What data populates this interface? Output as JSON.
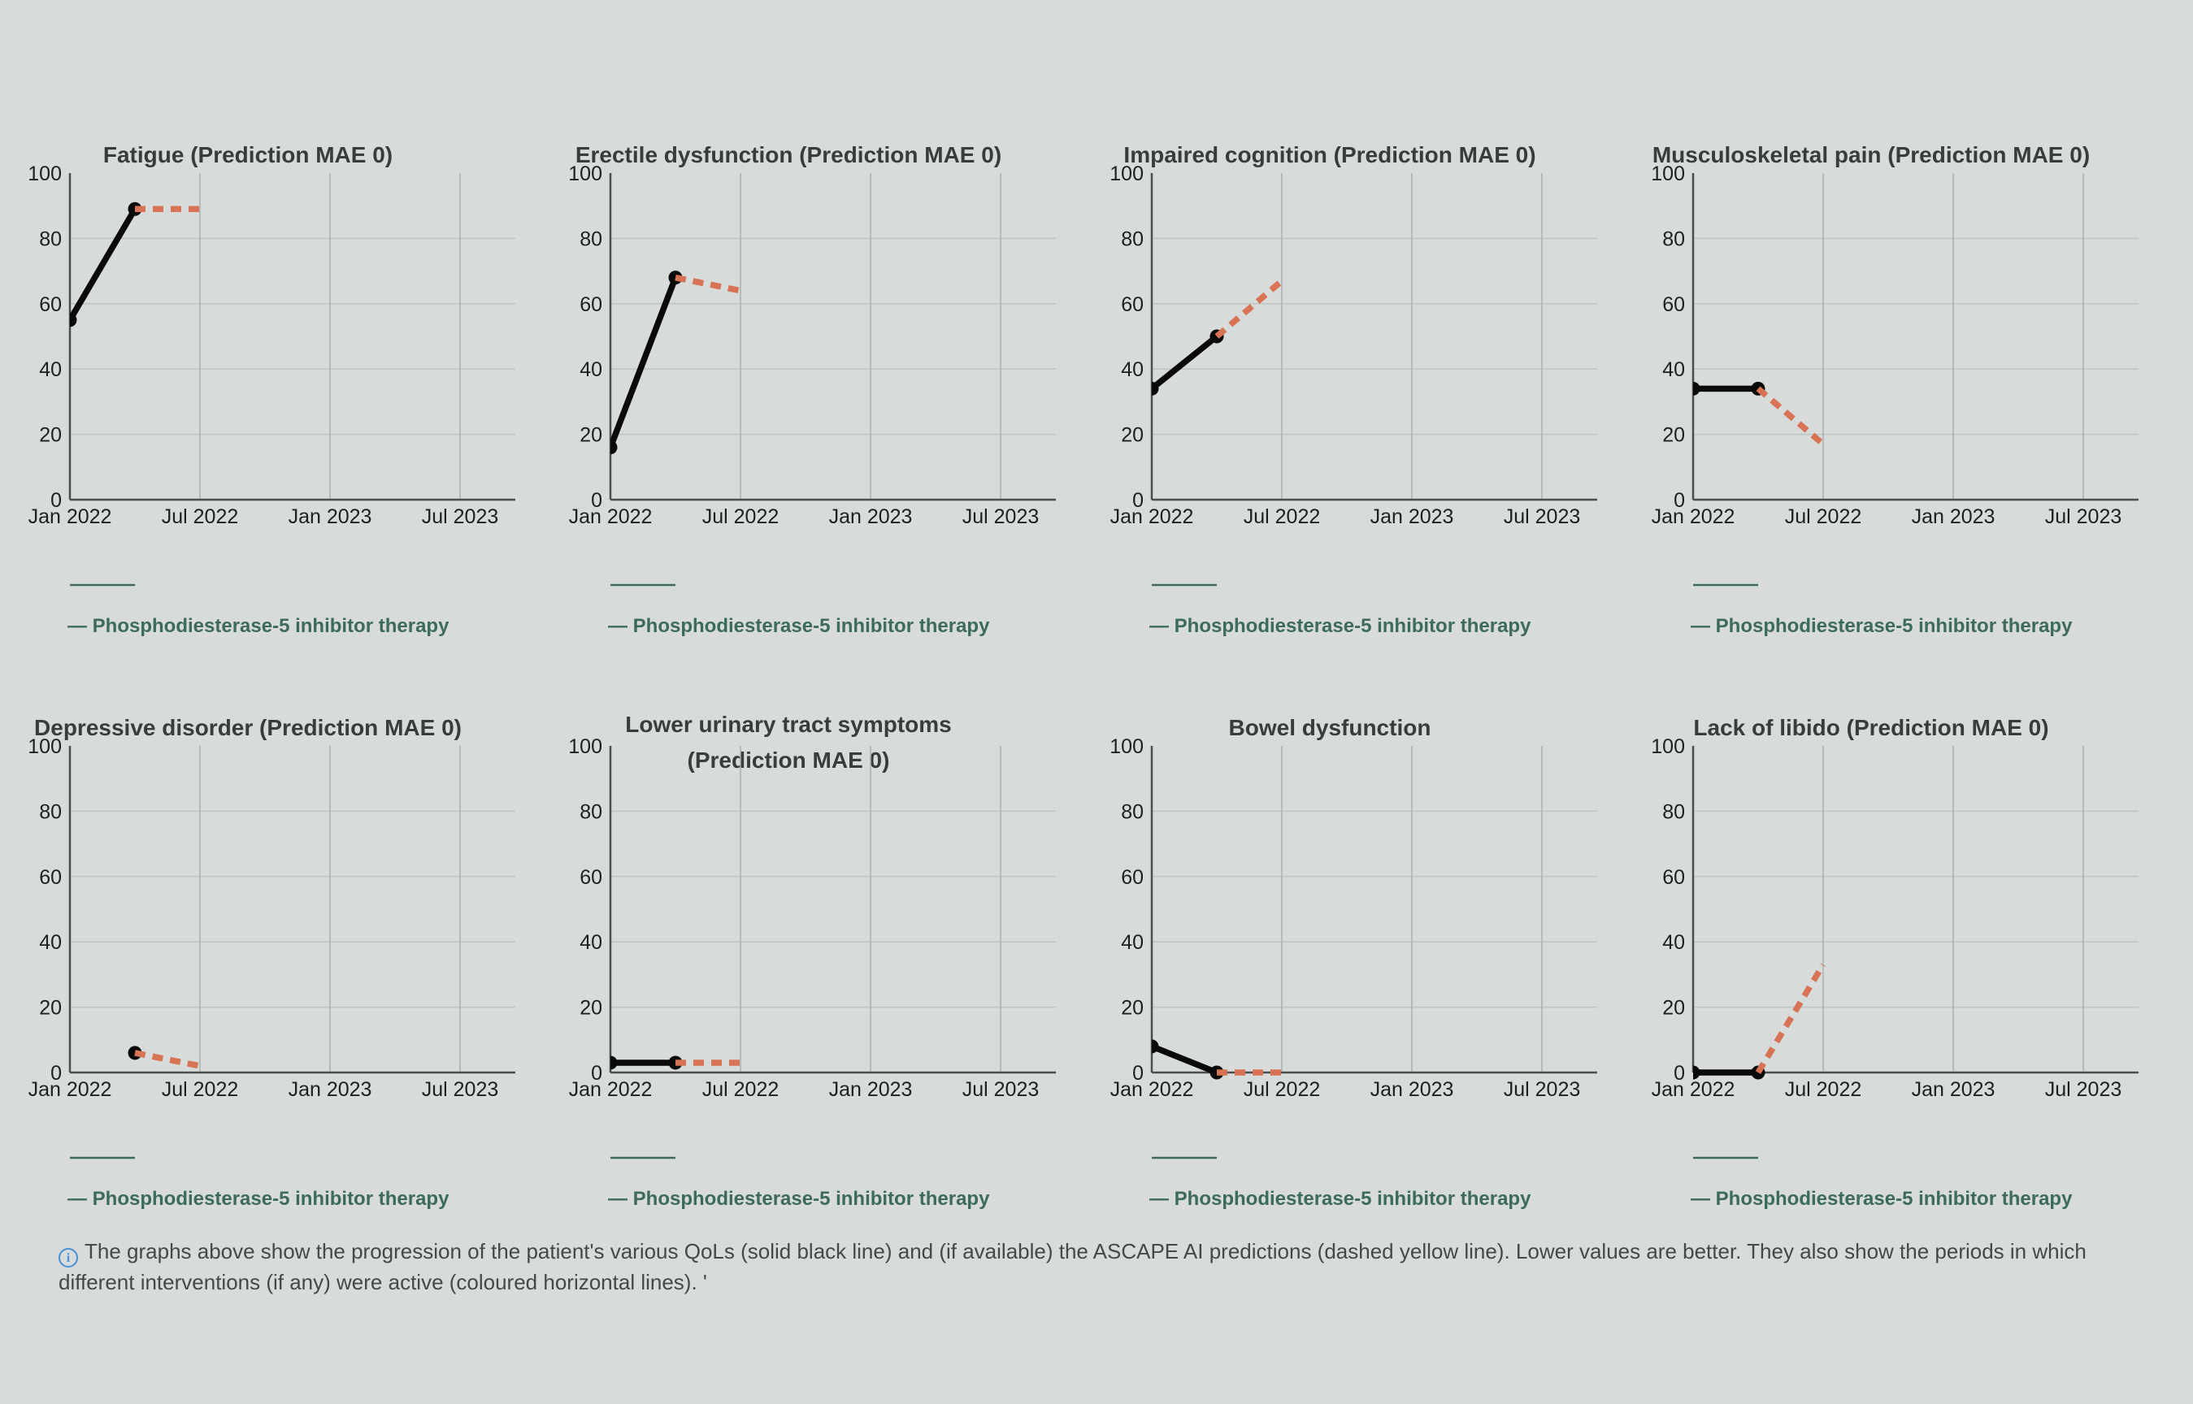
{
  "page": {
    "background": "#d7dcda"
  },
  "colors": {
    "title": "#383d3b",
    "tick_label": "#1d201f",
    "axis": "#4b4e4d",
    "grid_horizontal": "#bdc4c2",
    "grid_vertical": "#a9b0ae",
    "actual_line": "#0a0a0a",
    "prediction_line": "#d87355",
    "intervention_line": "#3e6a5d",
    "legend_text": "#3e6a5d",
    "note_text": "#424946",
    "info_icon": "#4a90d8"
  },
  "axis": {
    "x_ticks": [
      "Jan 2022",
      "Jul 2022",
      "Jan 2023",
      "Jul 2023"
    ],
    "y_ticks": [
      "0",
      "20",
      "40",
      "60",
      "80",
      "100"
    ],
    "ylim": [
      0,
      100
    ],
    "grid": true
  },
  "legend": {
    "label": "— Phosphodiesterase-5 inhibitor therapy"
  },
  "note": {
    "icon": "info-icon",
    "icon_glyph": "i",
    "text": "The graphs above show the progression of the patient's various QoLs (solid black line) and (if available) the ASCAPE AI predictions (dashed yellow line). Lower values are better. They also show the periods in which different interventions (if any) were active (coloured horizontal lines). '"
  },
  "chart_data": [
    {
      "type": "line",
      "title": "Fatigue (Prediction MAE 0)",
      "title_lines": [
        "Fatigue (Prediction MAE 0)"
      ],
      "xlabel": "",
      "ylabel": "",
      "actual": {
        "x": [
          "Jan 2022",
          "Apr 2022"
        ],
        "y": [
          55,
          89
        ]
      },
      "prediction": {
        "x": [
          "Apr 2022",
          "Jul 2022"
        ],
        "y": [
          89,
          89
        ]
      },
      "intervention": {
        "label": "Phosphodiesterase-5 inhibitor therapy",
        "x": [
          "Jan 2022",
          "Apr 2022"
        ]
      }
    },
    {
      "type": "line",
      "title": "Erectile dysfunction (Prediction MAE 0)",
      "title_lines": [
        "Erectile dysfunction (Prediction MAE 0)"
      ],
      "xlabel": "",
      "ylabel": "",
      "actual": {
        "x": [
          "Jan 2022",
          "Apr 2022"
        ],
        "y": [
          16,
          68
        ]
      },
      "prediction": {
        "x": [
          "Apr 2022",
          "Jul 2022"
        ],
        "y": [
          68,
          64
        ]
      },
      "intervention": {
        "label": "Phosphodiesterase-5 inhibitor therapy",
        "x": [
          "Jan 2022",
          "Apr 2022"
        ]
      }
    },
    {
      "type": "line",
      "title": "Impaired cognition (Prediction MAE 0)",
      "title_lines": [
        "Impaired cognition (Prediction MAE 0)"
      ],
      "xlabel": "",
      "ylabel": "",
      "actual": {
        "x": [
          "Jan 2022",
          "Apr 2022"
        ],
        "y": [
          34,
          50
        ]
      },
      "prediction": {
        "x": [
          "Apr 2022",
          "Jul 2022"
        ],
        "y": [
          50,
          67
        ]
      },
      "intervention": {
        "label": "Phosphodiesterase-5 inhibitor therapy",
        "x": [
          "Jan 2022",
          "Apr 2022"
        ]
      }
    },
    {
      "type": "line",
      "title": "Musculoskeletal pain (Prediction MAE 0)",
      "title_lines": [
        "Musculoskeletal pain (Prediction MAE 0)"
      ],
      "xlabel": "",
      "ylabel": "",
      "actual": {
        "x": [
          "Jan 2022",
          "Apr 2022"
        ],
        "y": [
          34,
          34
        ]
      },
      "prediction": {
        "x": [
          "Apr 2022",
          "Jul 2022"
        ],
        "y": [
          34,
          17
        ]
      },
      "intervention": {
        "label": "Phosphodiesterase-5 inhibitor therapy",
        "x": [
          "Jan 2022",
          "Apr 2022"
        ]
      }
    },
    {
      "type": "line",
      "title": "Depressive disorder (Prediction MAE 0)",
      "title_lines": [
        "Depressive disorder (Prediction MAE 0)"
      ],
      "xlabel": "",
      "ylabel": "",
      "actual": {
        "x": [
          "Apr 2022"
        ],
        "y": [
          6
        ]
      },
      "prediction": {
        "x": [
          "Apr 2022",
          "Jul 2022"
        ],
        "y": [
          6,
          2
        ]
      },
      "intervention": {
        "label": "Phosphodiesterase-5 inhibitor therapy",
        "x": [
          "Jan 2022",
          "Apr 2022"
        ]
      }
    },
    {
      "type": "line",
      "title": "Lower urinary tract symptoms (Prediction MAE 0)",
      "title_lines": [
        "Lower urinary tract symptoms",
        "(Prediction MAE 0)"
      ],
      "xlabel": "",
      "ylabel": "",
      "actual": {
        "x": [
          "Jan 2022",
          "Apr 2022"
        ],
        "y": [
          3,
          3
        ]
      },
      "prediction": {
        "x": [
          "Apr 2022",
          "Jul 2022"
        ],
        "y": [
          3,
          3
        ]
      },
      "intervention": {
        "label": "Phosphodiesterase-5 inhibitor therapy",
        "x": [
          "Jan 2022",
          "Apr 2022"
        ]
      }
    },
    {
      "type": "line",
      "title": "Bowel dysfunction",
      "title_lines": [
        "Bowel dysfunction"
      ],
      "xlabel": "",
      "ylabel": "",
      "actual": {
        "x": [
          "Jan 2022",
          "Apr 2022"
        ],
        "y": [
          8,
          0
        ]
      },
      "prediction": {
        "x": [
          "Apr 2022",
          "Jul 2022"
        ],
        "y": [
          0,
          0
        ]
      },
      "intervention": {
        "label": "Phosphodiesterase-5 inhibitor therapy",
        "x": [
          "Jan 2022",
          "Apr 2022"
        ]
      }
    },
    {
      "type": "line",
      "title": "Lack of libido (Prediction MAE 0)",
      "title_lines": [
        "Lack of libido (Prediction MAE 0)"
      ],
      "xlabel": "",
      "ylabel": "",
      "actual": {
        "x": [
          "Jan 2022",
          "Apr 2022"
        ],
        "y": [
          0,
          0
        ]
      },
      "prediction": {
        "x": [
          "Apr 2022",
          "Jul 2022"
        ],
        "y": [
          0,
          33
        ]
      },
      "intervention": {
        "label": "Phosphodiesterase-5 inhibitor therapy",
        "x": [
          "Jan 2022",
          "Apr 2022"
        ]
      }
    }
  ]
}
